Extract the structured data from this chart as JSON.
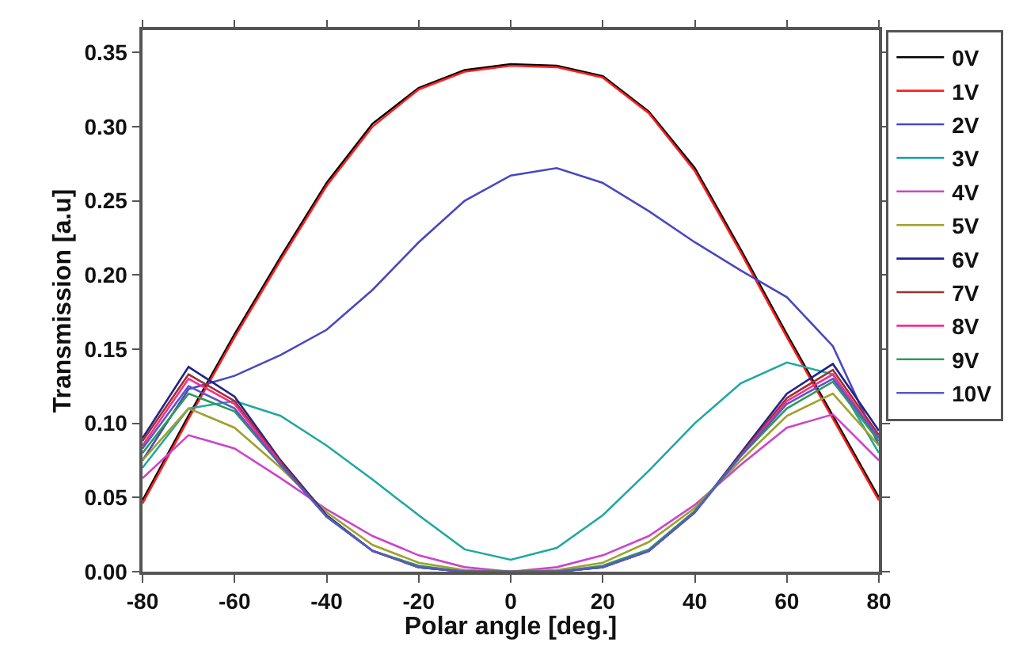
{
  "chart_data": {
    "type": "line",
    "xlabel": "Polar angle [deg.]",
    "ylabel": "Transmission [a.u]",
    "x": [
      -80,
      -70,
      -60,
      -50,
      -40,
      -30,
      -20,
      -10,
      0,
      10,
      20,
      30,
      40,
      50,
      60,
      70,
      80
    ],
    "xlim": [
      -80,
      80
    ],
    "xticks": [
      -80,
      -60,
      -40,
      -20,
      0,
      20,
      40,
      60,
      80
    ],
    "ylim": [
      0,
      0.365
    ],
    "yticks": [
      {
        "value": 0,
        "label": "0.00"
      },
      {
        "value": 0.05,
        "label": "0.05"
      },
      {
        "value": 0.1,
        "label": "0.10"
      },
      {
        "value": 0.15,
        "label": "0.15"
      },
      {
        "value": 0.2,
        "label": "0.20"
      },
      {
        "value": 0.25,
        "label": "0.25"
      },
      {
        "value": 0.3,
        "label": "0.30"
      },
      {
        "value": 0.35,
        "label": "0.35"
      }
    ],
    "grid": false,
    "legend": "right",
    "marker": "none",
    "line_style": "solid",
    "series": [
      {
        "name": "0V",
        "color": "#000000",
        "values": [
          0.048,
          0.105,
          0.16,
          0.212,
          0.262,
          0.302,
          0.326,
          0.338,
          0.342,
          0.341,
          0.334,
          0.31,
          0.272,
          0.217,
          0.16,
          0.105,
          0.05
        ]
      },
      {
        "name": "1V",
        "color": "#ff2020",
        "values": [
          0.046,
          0.103,
          0.158,
          0.21,
          0.26,
          0.3,
          0.325,
          0.337,
          0.341,
          0.34,
          0.333,
          0.309,
          0.27,
          0.215,
          0.158,
          0.103,
          0.048
        ]
      },
      {
        "name": "2V",
        "color": "#4848c0",
        "values": [
          0.075,
          0.123,
          0.132,
          0.146,
          0.163,
          0.19,
          0.222,
          0.25,
          0.267,
          0.272,
          0.262,
          0.243,
          0.222,
          0.203,
          0.185,
          0.152,
          0.085
        ]
      },
      {
        "name": "3V",
        "color": "#20a8a0",
        "values": [
          0.07,
          0.11,
          0.115,
          0.105,
          0.085,
          0.062,
          0.038,
          0.015,
          0.008,
          0.016,
          0.038,
          0.068,
          0.1,
          0.127,
          0.141,
          0.133,
          0.08
        ]
      },
      {
        "name": "4V",
        "color": "#cc44cc",
        "values": [
          0.063,
          0.092,
          0.083,
          0.063,
          0.042,
          0.024,
          0.011,
          0.003,
          0.0,
          0.003,
          0.011,
          0.024,
          0.045,
          0.072,
          0.097,
          0.106,
          0.075
        ]
      },
      {
        "name": "5V",
        "color": "#a0a030",
        "values": [
          0.075,
          0.11,
          0.097,
          0.07,
          0.04,
          0.018,
          0.006,
          0.001,
          0.0,
          0.001,
          0.006,
          0.02,
          0.043,
          0.075,
          0.105,
          0.12,
          0.085
        ]
      },
      {
        "name": "6V",
        "color": "#22228a",
        "values": [
          0.09,
          0.138,
          0.118,
          0.075,
          0.038,
          0.014,
          0.003,
          0.0,
          0.0,
          0.0,
          0.003,
          0.014,
          0.04,
          0.08,
          0.12,
          0.14,
          0.095
        ]
      },
      {
        "name": "7V",
        "color": "#993333",
        "values": [
          0.088,
          0.133,
          0.115,
          0.074,
          0.037,
          0.014,
          0.003,
          0.0,
          0.0,
          0.0,
          0.003,
          0.014,
          0.04,
          0.079,
          0.117,
          0.136,
          0.092
        ]
      },
      {
        "name": "8V",
        "color": "#ff2a8a",
        "values": [
          0.085,
          0.13,
          0.113,
          0.073,
          null,
          null,
          null,
          null,
          null,
          null,
          null,
          null,
          null,
          0.078,
          0.115,
          0.133,
          0.09
        ]
      },
      {
        "name": "9V",
        "color": "#2f9a5a",
        "values": [
          0.08,
          0.12,
          0.108,
          0.072,
          0.037,
          0.014,
          0.004,
          0.0,
          0.0,
          0.0,
          0.004,
          0.015,
          0.041,
          0.078,
          0.11,
          0.128,
          0.088
        ]
      },
      {
        "name": "10V",
        "color": "#5858c8",
        "values": [
          0.083,
          0.125,
          0.11,
          0.072,
          0.037,
          0.014,
          0.003,
          0.0,
          0.0,
          0.0,
          0.003,
          0.014,
          0.04,
          0.078,
          0.113,
          0.13,
          0.09
        ]
      }
    ]
  }
}
